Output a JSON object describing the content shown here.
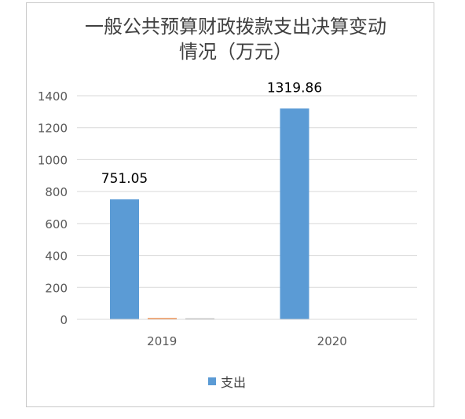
{
  "chart_data": {
    "type": "bar",
    "title_lines": [
      "一般公共预算财政拨款支出决算变动",
      "情况（万元）"
    ],
    "categories": [
      "2019",
      "2020"
    ],
    "series": [
      {
        "name": "支出",
        "values": [
          751.05,
          1319.86
        ],
        "color": "#5b9bd5"
      }
    ],
    "extra_bars": [
      {
        "category": "2019",
        "values": [
          8,
          6
        ],
        "colors": [
          "#ed7d31",
          "#a5a5a5"
        ]
      }
    ],
    "data_labels": [
      "751.05",
      "1319.86"
    ],
    "ylim": [
      0,
      1400
    ],
    "yticks": [
      0,
      200,
      400,
      600,
      800,
      1000,
      1200,
      1400
    ],
    "grid": true,
    "legend_position": "bottom"
  }
}
